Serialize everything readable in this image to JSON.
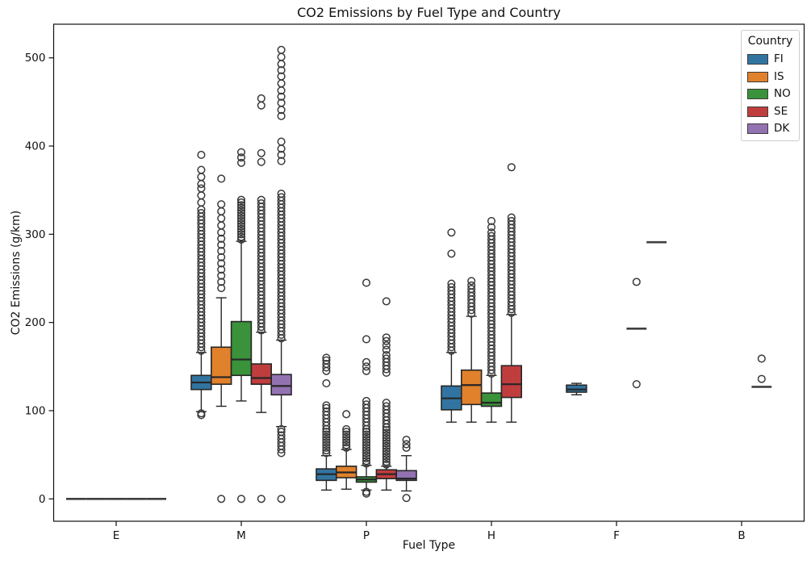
{
  "chart_data": {
    "type": "boxplot",
    "title": "CO2 Emissions by Fuel Type and Country",
    "xlabel": "Fuel Type",
    "ylabel": "CO2 Emissions (g/km)",
    "categories": [
      "E",
      "M",
      "P",
      "H",
      "F",
      "B"
    ],
    "yticks": [
      0,
      100,
      200,
      300,
      400,
      500
    ],
    "ylim": [
      -25,
      538
    ],
    "grid": false,
    "legend": {
      "title": "Country",
      "position": "upper right",
      "entries": [
        "FI",
        "IS",
        "NO",
        "SE",
        "DK"
      ]
    },
    "series": [
      {
        "name": "FI",
        "color": "#3274a1",
        "boxes": [
          {
            "whislo": 0,
            "q1": 0,
            "med": 0,
            "q3": 0,
            "whishi": 0,
            "fliers": []
          },
          {
            "whislo": 99,
            "q1": 124,
            "med": 132,
            "q3": 140,
            "whishi": 166,
            "fliers": [
              95,
              97,
              168,
              172,
              176,
              180,
              184,
              188,
              192,
              196,
              200,
              204,
              208,
              212,
              216,
              220,
              224,
              228,
              232,
              236,
              240,
              244,
              248,
              252,
              256,
              260,
              264,
              268,
              272,
              276,
              280,
              284,
              288,
              292,
              296,
              300,
              304,
              308,
              312,
              316,
              320,
              324,
              328,
              336,
              344,
              352,
              357,
              365,
              373,
              390
            ]
          },
          {
            "whislo": 10,
            "q1": 21,
            "med": 28,
            "q3": 34,
            "whishi": 49,
            "fliers": [
              52,
              55,
              58,
              61,
              64,
              67,
              70,
              73,
              76,
              79,
              83,
              87,
              91,
              95,
              99,
              103,
              106,
              131,
              145,
              149,
              153,
              157,
              160
            ]
          },
          {
            "whislo": 87,
            "q1": 101,
            "med": 114,
            "q3": 128,
            "whishi": 166,
            "fliers": [
              168,
              172,
              176,
              180,
              184,
              188,
              192,
              196,
              200,
              204,
              208,
              212,
              216,
              220,
              224,
              228,
              232,
              236,
              240,
              244,
              278,
              302
            ]
          },
          {
            "whislo": 118,
            "q1": 121,
            "med": 124,
            "q3": 129,
            "whishi": 131,
            "fliers": []
          },
          null
        ]
      },
      {
        "name": "IS",
        "color": "#e1812c",
        "boxes": [
          {
            "whislo": 0,
            "q1": 0,
            "med": 0,
            "q3": 0,
            "whishi": 0,
            "fliers": []
          },
          {
            "whislo": 105,
            "q1": 130,
            "med": 138,
            "q3": 172,
            "whishi": 228,
            "fliers": [
              0,
              239,
              246,
              253,
              260,
              267,
              274,
              281,
              288,
              295,
              302,
              310,
              318,
              326,
              334,
              363
            ]
          },
          {
            "whislo": 11,
            "q1": 24,
            "med": 30,
            "q3": 37,
            "whishi": 56,
            "fliers": [
              58,
              61,
              64,
              67,
              70,
              73,
              76,
              79,
              96
            ]
          },
          {
            "whislo": 87,
            "q1": 107,
            "med": 129,
            "q3": 146,
            "whishi": 207,
            "fliers": [
              210,
              214,
              218,
              222,
              226,
              230,
              234,
              238,
              242,
              247
            ]
          },
          null,
          null
        ]
      },
      {
        "name": "NO",
        "color": "#3a923a",
        "boxes": [
          {
            "whislo": 0,
            "q1": 0,
            "med": 0,
            "q3": 0,
            "whishi": 0,
            "fliers": []
          },
          {
            "whislo": 111,
            "q1": 140,
            "med": 158,
            "q3": 201,
            "whishi": 292,
            "fliers": [
              0,
              294,
              297,
              300,
              303,
              306,
              309,
              312,
              315,
              318,
              321,
              324,
              327,
              330,
              333,
              336,
              339,
              381,
              387,
              393
            ]
          },
          {
            "whislo": 10,
            "q1": 19,
            "med": 22,
            "q3": 25,
            "whishi": 38,
            "fliers": [
              6,
              8,
              40,
              43,
              46,
              49,
              52,
              55,
              58,
              61,
              64,
              67,
              70,
              73,
              76,
              79,
              83,
              87,
              91,
              95,
              99,
              103,
              107,
              111,
              145,
              150,
              155,
              181,
              245
            ]
          },
          {
            "whislo": 87,
            "q1": 105,
            "med": 109,
            "q3": 120,
            "whishi": 140,
            "fliers": [
              142,
              146,
              150,
              154,
              158,
              162,
              166,
              170,
              174,
              178,
              182,
              186,
              190,
              194,
              198,
              202,
              206,
              210,
              214,
              218,
              222,
              226,
              230,
              234,
              238,
              242,
              246,
              250,
              254,
              258,
              262,
              266,
              270,
              274,
              278,
              282,
              286,
              290,
              294,
              298,
              302,
              308,
              315
            ]
          },
          null,
          null
        ]
      },
      {
        "name": "SE",
        "color": "#c03d3e",
        "boxes": [
          {
            "whislo": 0,
            "q1": 0,
            "med": 0,
            "q3": 0,
            "whishi": 0,
            "fliers": []
          },
          {
            "whislo": 98,
            "q1": 130,
            "med": 137,
            "q3": 153,
            "whishi": 189,
            "fliers": [
              0,
              191,
              195,
              199,
              203,
              207,
              211,
              215,
              219,
              223,
              227,
              231,
              235,
              239,
              243,
              247,
              251,
              255,
              259,
              263,
              267,
              271,
              275,
              279,
              283,
              287,
              291,
              295,
              299,
              303,
              307,
              311,
              315,
              319,
              323,
              327,
              331,
              335,
              339,
              382,
              392,
              446,
              454
            ]
          },
          {
            "whislo": 10,
            "q1": 23,
            "med": 28,
            "q3": 33,
            "whishi": 37,
            "fliers": [
              39,
              42,
              45,
              48,
              51,
              54,
              57,
              60,
              63,
              66,
              69,
              72,
              75,
              78,
              81,
              85,
              89,
              93,
              97,
              101,
              105,
              109,
              143,
              147,
              151,
              155,
              159,
              163,
              169,
              174,
              179,
              183,
              224
            ]
          },
          {
            "whislo": 87,
            "q1": 115,
            "med": 130,
            "q3": 151,
            "whishi": 209,
            "fliers": [
              211,
              215,
              219,
              223,
              227,
              231,
              235,
              239,
              243,
              247,
              251,
              255,
              259,
              263,
              267,
              271,
              275,
              279,
              283,
              287,
              291,
              295,
              299,
              303,
              307,
              311,
              315,
              319,
              376
            ]
          },
          {
            "whislo": 193,
            "q1": 193,
            "med": 193,
            "q3": 193,
            "whishi": 193,
            "fliers": [
              130,
              246
            ]
          },
          {
            "whislo": 127,
            "q1": 127,
            "med": 127,
            "q3": 127,
            "whishi": 127,
            "fliers": [
              136,
              159
            ]
          }
        ]
      },
      {
        "name": "DK",
        "color": "#9372b2",
        "boxes": [
          {
            "whislo": 0,
            "q1": 0,
            "med": 0,
            "q3": 0,
            "whishi": 0,
            "fliers": []
          },
          {
            "whislo": 82,
            "q1": 118,
            "med": 128,
            "q3": 141,
            "whishi": 180,
            "fliers": [
              0,
              52,
              56,
              60,
              64,
              68,
              72,
              76,
              79,
              182,
              186,
              190,
              194,
              198,
              202,
              206,
              210,
              214,
              218,
              222,
              226,
              230,
              234,
              238,
              242,
              246,
              250,
              254,
              258,
              262,
              266,
              270,
              274,
              278,
              282,
              286,
              290,
              294,
              298,
              302,
              306,
              310,
              314,
              318,
              322,
              326,
              330,
              334,
              338,
              342,
              346,
              383,
              390,
              397,
              405,
              434,
              441,
              449,
              456,
              463,
              471,
              479,
              486,
              493,
              501,
              509
            ]
          },
          {
            "whislo": 9,
            "q1": 21,
            "med": 23,
            "q3": 32,
            "whishi": 49,
            "fliers": [
              1,
              58,
              62,
              67
            ]
          },
          null,
          {
            "whislo": 291,
            "q1": 291,
            "med": 291,
            "q3": 291,
            "whishi": 291,
            "fliers": []
          },
          null
        ]
      }
    ]
  }
}
